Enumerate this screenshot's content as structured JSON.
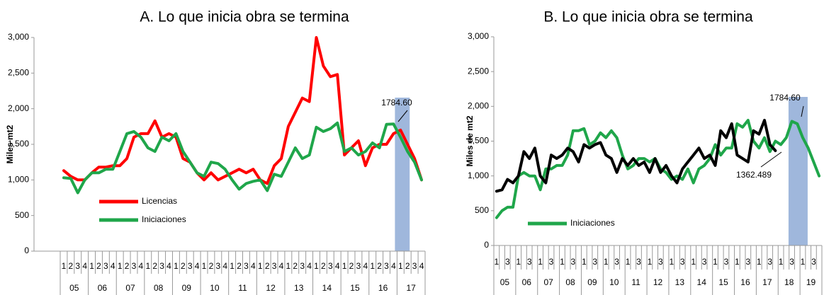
{
  "chart_data": [
    {
      "type": "line",
      "title": "A.   Lo que inicia obra se termina",
      "y_label": "Miles mt2",
      "categories": [
        "1",
        "2",
        "3",
        "4",
        "1",
        "2",
        "3",
        "4",
        "1",
        "2",
        "3",
        "4",
        "1",
        "2",
        "3",
        "4",
        "1",
        "2",
        "3",
        "4",
        "1",
        "2",
        "3",
        "4",
        "1",
        "2",
        "3",
        "4",
        "1",
        "2",
        "3",
        "4",
        "1",
        "2",
        "3",
        "4",
        "1",
        "2",
        "3",
        "4",
        "1",
        "2",
        "3",
        "4",
        "1",
        "2",
        "3",
        "4",
        "1",
        "2",
        "3",
        "4"
      ],
      "category_groups": [
        "05",
        "06",
        "07",
        "08",
        "09",
        "10",
        "11",
        "12",
        "13",
        "14",
        "15",
        "16",
        "17"
      ],
      "ylim": [
        0,
        3000
      ],
      "yticks": [
        0,
        500,
        {
          "value": 1000,
          "label": "1,000"
        },
        {
          "value": 1500,
          "label": "1,500"
        },
        {
          "value": 2000,
          "label": "2,000"
        },
        {
          "value": 2500,
          "label": "2,500"
        },
        {
          "value": 3000,
          "label": "3,000"
        }
      ],
      "grid": false,
      "legend": "center-left",
      "series": [
        {
          "name": "Licencias",
          "color": "#ff0000",
          "values": [
            1130,
            1050,
            1000,
            1000,
            1100,
            1180,
            1180,
            1200,
            1200,
            1300,
            1600,
            1650,
            1650,
            1830,
            1600,
            1650,
            1600,
            1300,
            1250,
            1100,
            1000,
            1100,
            1000,
            1050,
            1100,
            1150,
            1100,
            1150,
            1000,
            950,
            1200,
            1300,
            1750,
            1950,
            2150,
            2100,
            3000,
            2600,
            2450,
            2480,
            1350,
            1450,
            1550,
            1200,
            1450,
            1500,
            1500,
            1650,
            1700,
            1500,
            1300,
            1000
          ]
        },
        {
          "name": "Iniciaciones",
          "color": "#1fa64a",
          "values": [
            1030,
            1020,
            820,
            1000,
            1100,
            1100,
            1150,
            1150,
            1400,
            1650,
            1680,
            1600,
            1450,
            1400,
            1600,
            1550,
            1650,
            1400,
            1250,
            1100,
            1050,
            1250,
            1230,
            1150,
            1000,
            870,
            950,
            980,
            1000,
            850,
            1080,
            1050,
            1250,
            1450,
            1300,
            1350,
            1740,
            1680,
            1720,
            1800,
            1400,
            1450,
            1350,
            1400,
            1520,
            1450,
            1780,
            1785,
            1600,
            1400,
            1250,
            1000
          ]
        }
      ],
      "annotations": [
        "1784.60"
      ]
    },
    {
      "type": "line",
      "title": "B.   Lo que inicia obra se termina",
      "y_label": "Miles de mt2",
      "categories": [
        "1",
        null,
        "3",
        null,
        "1",
        null,
        "3",
        null,
        "1",
        null,
        "3",
        null,
        "1",
        null,
        "3",
        null,
        "1",
        null,
        "3",
        null,
        "1",
        null,
        "3",
        null,
        "1",
        null,
        "3",
        null,
        "1",
        null,
        "3",
        null,
        "1",
        null,
        "3",
        null,
        "1",
        null,
        "3",
        null,
        "1",
        null,
        "3",
        null,
        "1",
        null,
        "3",
        null,
        "1",
        null,
        "3",
        null,
        "1",
        null,
        "3",
        null,
        "1",
        null,
        "3",
        null
      ],
      "category_groups": [
        "05",
        "06",
        "07",
        "08",
        "09",
        "10",
        "11",
        "12",
        "13",
        "14",
        "15",
        "16",
        "17",
        "18",
        "19"
      ],
      "ylim": [
        0,
        3000
      ],
      "yticks": [
        0,
        500,
        {
          "value": 1000,
          "label": "1,000"
        },
        {
          "value": 1500,
          "label": "1,500"
        },
        {
          "value": 2000,
          "label": "2,000"
        },
        {
          "value": 2500,
          "label": "2,500"
        },
        {
          "value": 3000,
          "label": "3,000"
        }
      ],
      "grid": false,
      "legend": "bottom-left",
      "series": [
        {
          "name": "Iniciaciones",
          "color": "#1fa64a",
          "values": [
            400,
            500,
            550,
            550,
            1000,
            1050,
            1000,
            1000,
            800,
            1100,
            1100,
            1150,
            1150,
            1300,
            1650,
            1650,
            1680,
            1450,
            1500,
            1620,
            1550,
            1650,
            1550,
            1300,
            1100,
            1150,
            1250,
            1250,
            1200,
            1250,
            1100,
            1050,
            950,
            1000,
            950,
            1100,
            900,
            1100,
            1150,
            1250,
            1450,
            1300,
            1400,
            1400,
            1750,
            1700,
            1800,
            1500,
            1400,
            1550,
            1350,
            1500,
            1450,
            1550,
            1784.6,
            1750,
            1550,
            1400,
            1200,
            1000
          ]
        },
        {
          "color": "#000000",
          "values": [
            780,
            800,
            950,
            900,
            1000,
            1350,
            1250,
            1400,
            1000,
            900,
            1300,
            1250,
            1300,
            1400,
            1350,
            1200,
            1450,
            1400,
            1450,
            1480,
            1300,
            1250,
            1050,
            1250,
            1150,
            1250,
            1150,
            1200,
            1050,
            1250,
            1050,
            1150,
            1000,
            900,
            1100,
            1200,
            1300,
            1400,
            1250,
            1300,
            1150,
            1650,
            1550,
            1750,
            1300,
            1250,
            1200,
            1650,
            1600,
            1800,
            1450,
            1362.489,
            null,
            null,
            null,
            null,
            null,
            null,
            null,
            null
          ]
        }
      ],
      "annotations": [
        "1784.60",
        "1362.489"
      ]
    }
  ]
}
